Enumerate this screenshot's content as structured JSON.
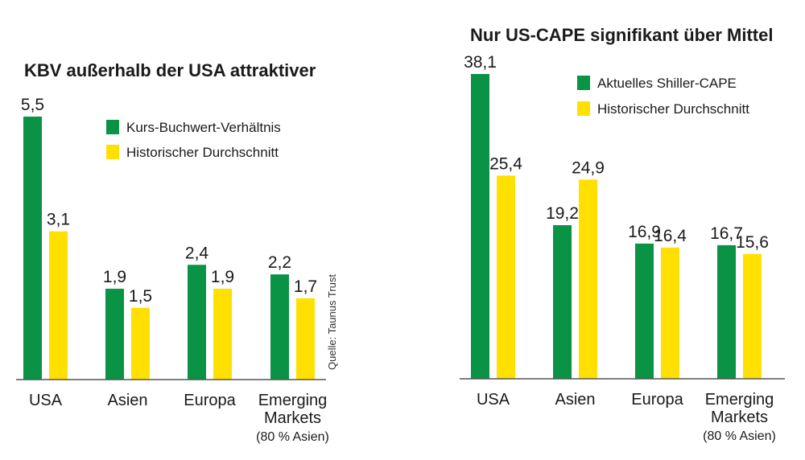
{
  "colors": {
    "primary": "#0a9344",
    "secondary": "#ffe000",
    "axis": "#555555",
    "text": "#1a1a1a"
  },
  "source": "Quelle: Taunus Trust",
  "chart_data": [
    {
      "type": "bar",
      "title": "KBV außerhalb der USA attraktiver",
      "categories": [
        "USA",
        "Asien",
        "Europa",
        "Emerging Markets"
      ],
      "category_lines": [
        [
          "USA"
        ],
        [
          "Asien"
        ],
        [
          "Europa"
        ],
        [
          "Emerging",
          "Markets"
        ]
      ],
      "category_notes": [
        "",
        "",
        "",
        "(80 % Asien)"
      ],
      "series": [
        {
          "name": "Kurs-Buchwert-Verhältnis",
          "values": [
            5.5,
            1.9,
            2.4,
            2.2
          ],
          "labels": [
            "5,5",
            "1,9",
            "2,4",
            "2,2"
          ]
        },
        {
          "name": "Historischer Durchschnitt",
          "values": [
            3.1,
            1.5,
            1.9,
            1.7
          ],
          "labels": [
            "3,1",
            "1,5",
            "1,9",
            "1,7"
          ]
        }
      ],
      "ylim": [
        0,
        5.5
      ],
      "legend": "top-right"
    },
    {
      "type": "bar",
      "title": "Nur US-CAPE signifikant über Mittel",
      "categories": [
        "USA",
        "Asien",
        "Europa",
        "Emerging Markets"
      ],
      "category_lines": [
        [
          "USA"
        ],
        [
          "Asien"
        ],
        [
          "Europa"
        ],
        [
          "Emerging",
          "Markets"
        ]
      ],
      "category_notes": [
        "",
        "",
        "",
        "(80 % Asien)"
      ],
      "series": [
        {
          "name": "Aktuelles Shiller-CAPE",
          "values": [
            38.1,
            19.2,
            16.9,
            16.7
          ],
          "labels": [
            "38,1",
            "19,2",
            "16,9",
            "16,7"
          ]
        },
        {
          "name": "Historischer Durchschnitt",
          "values": [
            25.4,
            24.9,
            16.4,
            15.6
          ],
          "labels": [
            "25,4",
            "24,9",
            "16,4",
            "15,6"
          ]
        }
      ],
      "ylim": [
        0,
        38.1
      ],
      "legend": "top-right"
    }
  ]
}
